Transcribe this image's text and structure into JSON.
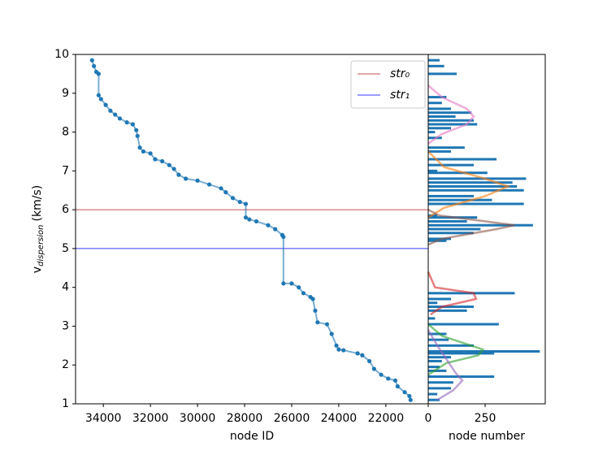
{
  "chart_data": [
    {
      "type": "scatter",
      "xlabel": "node ID",
      "ylabel": {
        "main": "v",
        "sub": "dispersion",
        "unit": "(km/s)"
      },
      "xlim": [
        35180,
        20200
      ],
      "ylim": [
        1,
        10
      ],
      "xticks": [
        34000,
        32000,
        30000,
        28000,
        26000,
        24000,
        22000
      ],
      "yticks": [
        1,
        2,
        3,
        4,
        5,
        6,
        7,
        8,
        9,
        10
      ],
      "series": [
        {
          "color": "#1f77b4",
          "x": [
            34480,
            34400,
            34300,
            34200,
            34200,
            34100,
            33900,
            33700,
            33500,
            33300,
            33000,
            32750,
            32600,
            32550,
            32450,
            32300,
            32000,
            31800,
            31500,
            31200,
            31000,
            30800,
            30500,
            30000,
            29500,
            29000,
            28800,
            28500,
            28200,
            27950,
            27950,
            27800,
            27500,
            27000,
            26700,
            26400,
            26350,
            26350,
            26000,
            25700,
            25500,
            25200,
            25100,
            25000,
            24900,
            24500,
            24300,
            24100,
            24000,
            23800,
            23200,
            23000,
            22700,
            22500,
            22200,
            21900,
            21600,
            21500,
            21200,
            21000,
            20950
          ],
          "y": [
            9.85,
            9.7,
            9.55,
            9.5,
            8.95,
            8.85,
            8.7,
            8.55,
            8.45,
            8.35,
            8.25,
            8.2,
            8.05,
            7.9,
            7.6,
            7.5,
            7.45,
            7.3,
            7.25,
            7.15,
            7.05,
            6.9,
            6.8,
            6.75,
            6.65,
            6.55,
            6.45,
            6.3,
            6.2,
            6.15,
            5.8,
            5.75,
            5.7,
            5.6,
            5.5,
            5.35,
            5.3,
            4.1,
            4.1,
            4.0,
            3.85,
            3.75,
            3.7,
            3.4,
            3.1,
            3.05,
            2.8,
            2.5,
            2.4,
            2.38,
            2.3,
            2.25,
            2.1,
            1.9,
            1.75,
            1.65,
            1.6,
            1.45,
            1.3,
            1.2,
            1.1
          ]
        }
      ],
      "hlines": [
        {
          "name": "str₀",
          "value": 6,
          "color": "#c44e52"
        },
        {
          "name": "str₁",
          "value": 5,
          "color": "#3a3aff"
        }
      ],
      "legend": "upper right"
    },
    {
      "type": "barh",
      "xlabel": "node number",
      "xlim": [
        0,
        514
      ],
      "ylim": [
        1,
        10
      ],
      "xticks": [
        0,
        250
      ],
      "bars": {
        "color": "#1f77b4",
        "y": [
          9.85,
          9.7,
          9.5,
          8.9,
          8.75,
          8.6,
          8.5,
          8.4,
          8.3,
          8.2,
          8.1,
          8.0,
          7.85,
          7.6,
          7.5,
          7.3,
          7.15,
          7.0,
          6.95,
          6.8,
          6.7,
          6.6,
          6.5,
          6.35,
          6.25,
          6.15,
          5.85,
          5.8,
          5.7,
          5.6,
          5.5,
          5.4,
          5.25,
          5.2,
          3.85,
          3.7,
          3.6,
          3.5,
          3.4,
          3.2,
          3.05,
          2.8,
          2.65,
          2.5,
          2.35,
          2.3,
          2.2,
          2.1,
          1.95,
          1.85,
          1.7,
          1.55,
          1.4,
          1.25,
          1.1
        ],
        "values": [
          50,
          70,
          125,
          80,
          60,
          100,
          190,
          120,
          200,
          215,
          100,
          30,
          60,
          160,
          100,
          300,
          200,
          40,
          260,
          430,
          370,
          390,
          420,
          200,
          280,
          420,
          40,
          215,
          170,
          460,
          230,
          200,
          100,
          80,
          380,
          100,
          40,
          200,
          170,
          30,
          310,
          80,
          90,
          200,
          490,
          290,
          100,
          60,
          50,
          80,
          290,
          110,
          100,
          40,
          50
        ]
      },
      "curves": [
        {
          "color": "#e377c2",
          "x": [
            0,
            60,
            170,
            200,
            170,
            60,
            0
          ],
          "y": [
            9.2,
            8.9,
            8.6,
            8.4,
            8.2,
            7.95,
            7.7
          ]
        },
        {
          "color": "#ff7f0e",
          "x": [
            0,
            70,
            250,
            350,
            250,
            70,
            0
          ],
          "y": [
            7.5,
            7.1,
            6.8,
            6.6,
            6.35,
            6.05,
            5.8
          ]
        },
        {
          "color": "#8c564b",
          "x": [
            0,
            60,
            300,
            380,
            250,
            50,
            0
          ],
          "y": [
            5.1,
            5.25,
            5.5,
            5.6,
            5.7,
            5.85,
            6.0
          ]
        },
        {
          "color": "#d62728",
          "x": [
            0,
            30,
            200,
            210,
            60,
            10
          ],
          "y": [
            4.4,
            4.0,
            3.85,
            3.7,
            3.5,
            3.3
          ]
        },
        {
          "color": "#2ca02c",
          "x": [
            0,
            60,
            240,
            220,
            80,
            0
          ],
          "y": [
            3.05,
            2.75,
            2.4,
            2.25,
            2.05,
            1.75
          ]
        },
        {
          "color": "#9467bd",
          "x": [
            0,
            40,
            120,
            150,
            110,
            40
          ],
          "y": [
            2.9,
            2.5,
            1.8,
            1.6,
            1.35,
            1.1
          ]
        }
      ]
    }
  ]
}
